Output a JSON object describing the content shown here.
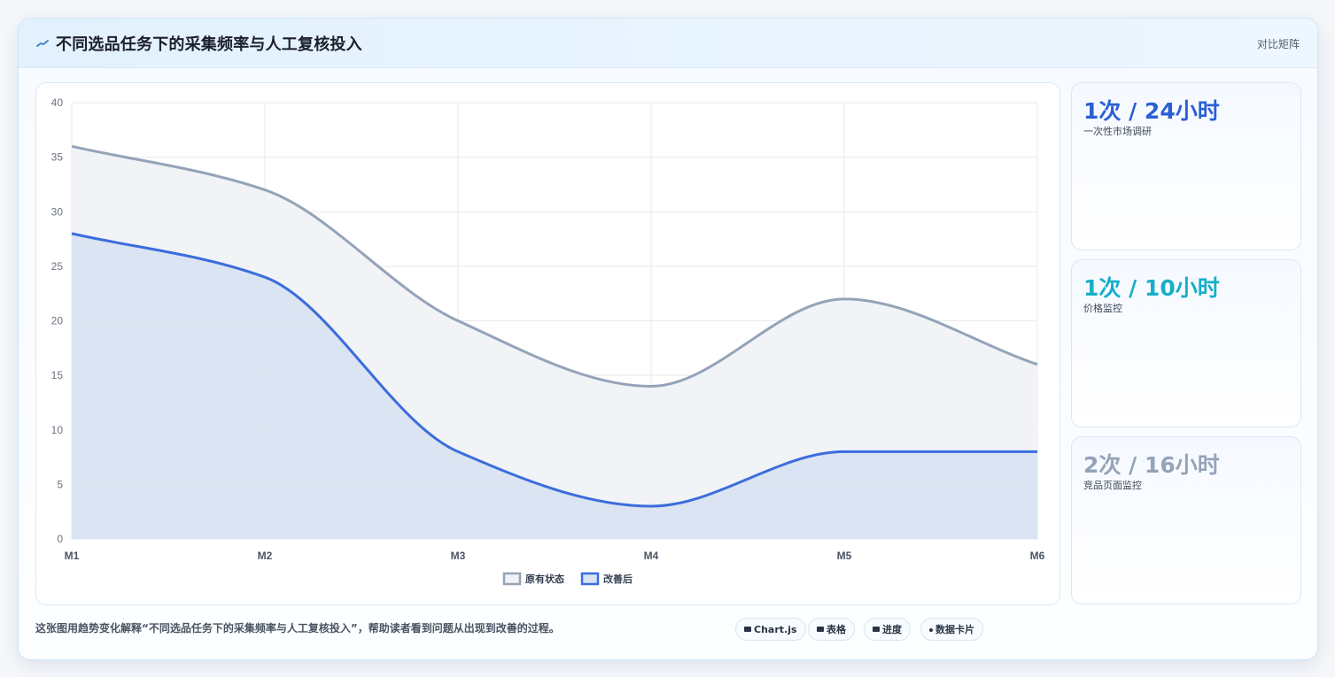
{
  "header": {
    "title": "不同选品任务下的采集频率与人工复核投入",
    "tag": "对比矩阵",
    "icon": "sparkline-icon"
  },
  "chart_data": {
    "type": "area",
    "categories": [
      "M1",
      "M2",
      "M3",
      "M4",
      "M5",
      "M6"
    ],
    "series": [
      {
        "name": "原有状态",
        "values": [
          36,
          32,
          20,
          14,
          22,
          16
        ],
        "color": "#94a3b8",
        "fill": "#f0f2f6"
      },
      {
        "name": "改善后",
        "values": [
          28,
          24,
          8,
          3,
          8,
          8
        ],
        "color": "#3b6ddc",
        "fill": "#d8e2f1"
      }
    ],
    "yticks": [
      0,
      5,
      10,
      15,
      20,
      25,
      30,
      35,
      40
    ],
    "ylim": [
      0,
      40
    ],
    "grid": true,
    "legend": "bottom",
    "title": "",
    "xlabel": "",
    "ylabel": ""
  },
  "kpis": [
    {
      "value": "1次 / 24小时",
      "label": "一次性市场调研",
      "color": "#2a5fd6"
    },
    {
      "value": "1次 / 10小时",
      "label": "价格监控",
      "color": "#17aec8"
    },
    {
      "value": "2次 / 16小时",
      "label": "竞品页面监控",
      "color": "#94a3b8"
    }
  ],
  "footer": {
    "description": "这张图用趋势变化解释“不同选品任务下的采集频率与人工复核投入”，帮助读者看到问题从出现到改善的过程。",
    "pills": [
      {
        "label": "Chart.js",
        "icon": "chart-icon"
      },
      {
        "label": "表格",
        "icon": "table-icon"
      },
      {
        "label": "进度",
        "icon": "progress-icon"
      },
      {
        "label": "数据卡片",
        "icon": "card-icon"
      }
    ]
  }
}
